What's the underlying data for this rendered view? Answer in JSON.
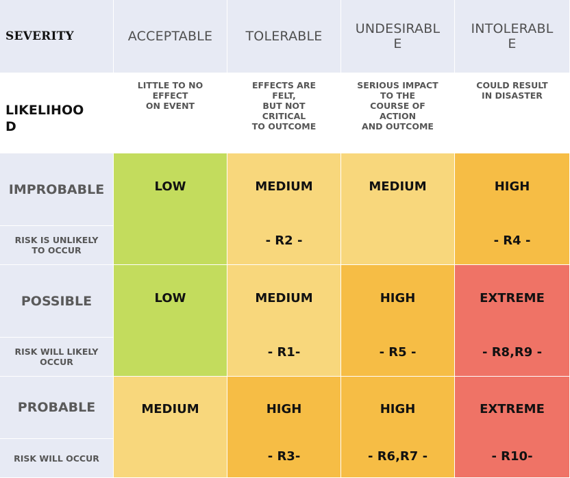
{
  "header": {
    "severity_label": "SEVERITY",
    "columns": [
      "ACCEPTABLE",
      "TOLERABLE",
      "UNDESIRABL\nE",
      "INTOLERABL\nE"
    ]
  },
  "descriptions": {
    "likelihood_label": "LIKELIHOO\nD",
    "columns": [
      "LITTLE TO NO\nEFFECT\nON EVENT",
      "EFFECTS ARE\nFELT,\nBUT NOT\nCRITICAL\nTO OUTCOME",
      "SERIOUS IMPACT\nTO THE\nCOURSE OF\nACTION\nAND OUTCOME",
      "COULD RESULT\nIN DISASTER"
    ]
  },
  "rows": [
    {
      "level": "IMPROBABLE",
      "description": "RISK IS UNLIKELY\nTO OCCUR",
      "cells": [
        {
          "rating": "LOW",
          "codes": "",
          "color": "#c3dc5d"
        },
        {
          "rating": "MEDIUM",
          "codes": "- R2 -",
          "color": "#f8d77c"
        },
        {
          "rating": "MEDIUM",
          "codes": "",
          "color": "#f8d77c"
        },
        {
          "rating": "HIGH",
          "codes": "- R4 -",
          "color": "#f6bd45"
        }
      ]
    },
    {
      "level": "POSSIBLE",
      "description": "RISK WILL LIKELY\nOCCUR",
      "cells": [
        {
          "rating": "LOW",
          "codes": "",
          "color": "#c3dc5d"
        },
        {
          "rating": "MEDIUM",
          "codes": "- R1-",
          "color": "#f8d77c"
        },
        {
          "rating": "HIGH",
          "codes": "- R5 -",
          "color": "#f6bd45"
        },
        {
          "rating": "EXTREME",
          "codes": "- R8,R9 -",
          "color": "#ef7366"
        }
      ]
    },
    {
      "level": "PROBABLE",
      "description": "RISK WILL OCCUR",
      "cells": [
        {
          "rating": "MEDIUM",
          "codes": "",
          "color": "#f8d77c"
        },
        {
          "rating": "HIGH",
          "codes": "- R3-",
          "color": "#f6bd45"
        },
        {
          "rating": "HIGH",
          "codes": "- R6,R7 -",
          "color": "#f6bd45"
        },
        {
          "rating": "EXTREME",
          "codes": "- R10-",
          "color": "#ef7366"
        }
      ]
    }
  ]
}
